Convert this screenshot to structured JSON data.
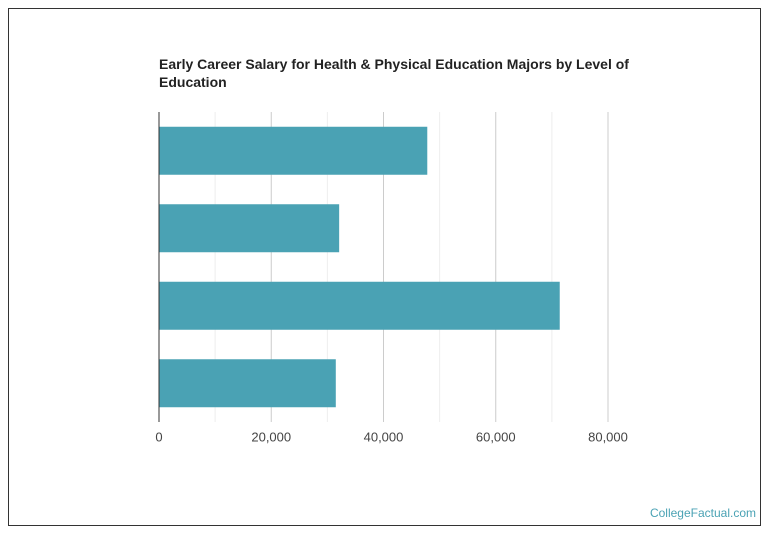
{
  "chart_data": {
    "type": "hbar",
    "title": "Early Career Salary for Health & Physical Education Majors by Level of Education",
    "categories": [
      null,
      null,
      null,
      null
    ],
    "values": [
      47800,
      32100,
      71400,
      31500
    ],
    "color": "#4aa2b4",
    "xlim": [
      0,
      80000
    ],
    "xticks": [
      0,
      {
        "value": 20000,
        "label": "20,000"
      },
      {
        "value": 40000,
        "label": "40,000"
      },
      {
        "value": 60000,
        "label": "60,000"
      },
      {
        "value": 80000,
        "label": "80,000"
      }
    ],
    "xminor": [
      10000,
      30000,
      50000,
      70000
    ],
    "grid": true
  },
  "watermark": "CollegeFactual.com"
}
